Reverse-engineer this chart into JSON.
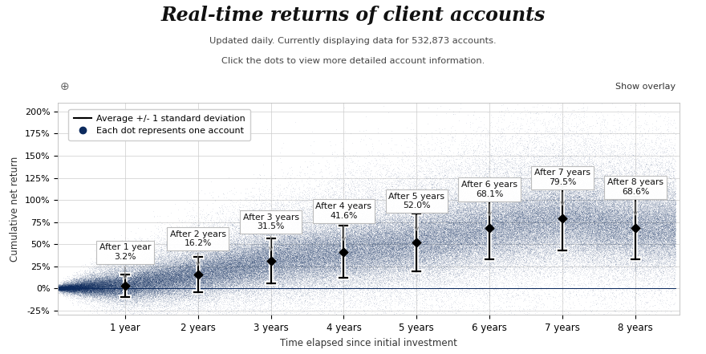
{
  "title": "Real-time returns of client accounts",
  "subtitle1": "Updated daily. Currently displaying data for 532,873 accounts.",
  "subtitle2": "Click the dots to view more detailed account information.",
  "ylabel": "Cumulative net return",
  "xlabel": "Time elapsed since initial investment",
  "legend_label1": "Average +/- 1 standard deviation",
  "legend_label2": "Each dot represents one account",
  "show_overlay_text": "Show overlay",
  "background_color": "#ffffff",
  "plot_bg_color": "#ffffff",
  "grid_color": "#cccccc",
  "dot_color": "#0d2b5e",
  "error_bar_color": "#000000",
  "years": [
    1,
    2,
    3,
    4,
    5,
    6,
    7,
    8
  ],
  "means": [
    0.032,
    0.162,
    0.315,
    0.416,
    0.52,
    0.681,
    0.795,
    0.686
  ],
  "stds": [
    0.13,
    0.2,
    0.255,
    0.295,
    0.325,
    0.355,
    0.365,
    0.355
  ],
  "ylim": [
    -0.3,
    2.1
  ],
  "yticks": [
    -0.25,
    0.0,
    0.25,
    0.5,
    0.75,
    1.0,
    1.25,
    1.5,
    1.75,
    2.0
  ],
  "ytick_labels": [
    "-25%",
    "0%",
    "25%",
    "50%",
    "75%",
    "100%",
    "125%",
    "150%",
    "175%",
    "200%"
  ],
  "xtick_positions": [
    1,
    2,
    3,
    4,
    5,
    6,
    7,
    8
  ],
  "xtick_labels": [
    "1 year",
    "2 years",
    "3 years",
    "4 years",
    "5 years",
    "6 years",
    "7 years",
    "8 years"
  ],
  "ann_labels": [
    "After 1 year\n3.2%",
    "After 2 years\n16.2%",
    "After 3 years\n31.5%",
    "After 4 years\n41.6%",
    "After 5 years\n52.0%",
    "After 6 years\n68.1%",
    "After 7 years\n79.5%",
    "After 8 years\n68.6%"
  ],
  "ann_offset_y": [
    0.28,
    0.3,
    0.34,
    0.36,
    0.37,
    0.34,
    0.36,
    0.36
  ],
  "ann_offset_x": [
    0.0,
    0.0,
    0.0,
    0.0,
    0.0,
    0.0,
    0.0,
    0.0
  ]
}
